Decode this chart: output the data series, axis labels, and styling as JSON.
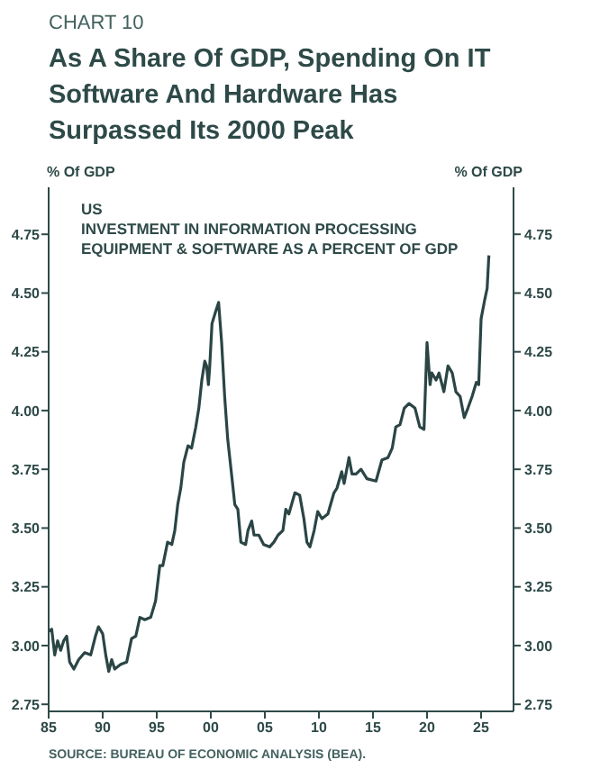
{
  "chart_data": {
    "type": "line",
    "title": "CHART 10",
    "subtitle": "As A Share Of GDP, Spending On IT Software And Hardware Has Surpassed Its 2000 Peak",
    "ylabel": "% Of GDP",
    "y2label": "% Of GDP",
    "annotations": [
      "US",
      "INVESTMENT IN INFORMATION PROCESSING EQUIPMENT & SOFTWARE AS A PERCENT OF GDP",
      "SOURCE: BUREAU OF ECONOMIC ANALYSIS (BEA)."
    ],
    "x": [
      1985.0,
      1985.28,
      1985.56,
      1985.83,
      1986.11,
      1986.39,
      1986.67,
      1986.94,
      1987.33,
      1987.78,
      1988.33,
      1988.89,
      1989.33,
      1989.61,
      1990.0,
      1990.28,
      1990.56,
      1990.83,
      1991.11,
      1991.67,
      1992.22,
      1992.67,
      1993.06,
      1993.44,
      1993.89,
      1994.44,
      1994.89,
      1995.28,
      1995.56,
      1996.0,
      1996.39,
      1996.67,
      1996.94,
      1997.22,
      1997.5,
      1997.89,
      1998.22,
      1998.61,
      1998.89,
      1999.17,
      1999.44,
      1999.61,
      1999.78,
      1999.89,
      2000.11,
      2000.44,
      2000.72,
      2001.0,
      2001.28,
      2001.56,
      2001.94,
      2002.22,
      2002.5,
      2002.78,
      2003.22,
      2003.44,
      2003.78,
      2004.0,
      2004.44,
      2004.89,
      2005.44,
      2005.83,
      2006.22,
      2006.67,
      2006.94,
      2007.22,
      2007.78,
      2008.22,
      2008.61,
      2008.89,
      2009.17,
      2009.56,
      2009.89,
      2010.28,
      2010.83,
      2011.39,
      2011.67,
      2012.11,
      2012.33,
      2012.78,
      2013.06,
      2013.44,
      2013.89,
      2014.44,
      2015.28,
      2015.83,
      2016.39,
      2016.78,
      2017.11,
      2017.5,
      2017.89,
      2018.33,
      2018.89,
      2019.33,
      2019.72,
      2020.0,
      2020.28,
      2020.44,
      2020.83,
      2021.11,
      2021.56,
      2021.94,
      2022.33,
      2022.67,
      2023.06,
      2023.44,
      2023.78,
      2024.17,
      2024.56,
      2024.78,
      2025.0,
      2025.33,
      2025.56,
      2025.72
    ],
    "series": [
      {
        "color": "#2b4545",
        "values": [
          3.06,
          3.07,
          2.96,
          3.02,
          2.98,
          3.02,
          3.04,
          2.93,
          2.9,
          2.94,
          2.97,
          2.96,
          3.04,
          3.08,
          3.05,
          2.96,
          2.89,
          2.94,
          2.9,
          2.92,
          2.93,
          3.03,
          3.04,
          3.12,
          3.11,
          3.12,
          3.19,
          3.34,
          3.34,
          3.44,
          3.43,
          3.49,
          3.6,
          3.67,
          3.78,
          3.85,
          3.84,
          3.93,
          4.01,
          4.13,
          4.21,
          4.19,
          4.11,
          4.18,
          4.37,
          4.42,
          4.46,
          4.29,
          4.06,
          3.88,
          3.72,
          3.6,
          3.58,
          3.44,
          3.43,
          3.49,
          3.53,
          3.47,
          3.47,
          3.43,
          3.42,
          3.44,
          3.47,
          3.49,
          3.58,
          3.56,
          3.65,
          3.64,
          3.54,
          3.44,
          3.42,
          3.49,
          3.57,
          3.54,
          3.56,
          3.65,
          3.67,
          3.74,
          3.69,
          3.8,
          3.73,
          3.73,
          3.75,
          3.71,
          3.7,
          3.79,
          3.8,
          3.84,
          3.93,
          3.94,
          4.01,
          4.03,
          4.01,
          3.93,
          3.92,
          4.29,
          4.11,
          4.16,
          4.13,
          4.16,
          4.08,
          4.19,
          4.16,
          4.08,
          4.06,
          3.97,
          4.01,
          4.06,
          4.12,
          4.11,
          4.39,
          4.47,
          4.52,
          4.66
        ]
      }
    ],
    "xlim": [
      1985,
      2028
    ],
    "xticks": [
      {
        "value": 1985,
        "label": "85"
      },
      {
        "value": 1990,
        "label": "90"
      },
      {
        "value": 1995,
        "label": "95"
      },
      {
        "value": 2000,
        "label": "00"
      },
      {
        "value": 2005,
        "label": "05"
      },
      {
        "value": 2010,
        "label": "10"
      },
      {
        "value": 2015,
        "label": "15"
      },
      {
        "value": 2020,
        "label": "20"
      },
      {
        "value": 2025,
        "label": "25"
      }
    ],
    "ylim": [
      2.72,
      4.95
    ],
    "yticks": [
      2.75,
      {
        "value": 3,
        "label": "3.00"
      },
      3.25,
      {
        "value": 3.5,
        "label": "3.50"
      },
      3.75,
      {
        "value": 4,
        "label": "4.00"
      },
      4.25,
      {
        "value": 4.5,
        "label": "4.50"
      },
      4.75
    ],
    "y2lim": [
      2.72,
      4.95
    ],
    "y2ticks": [
      2.75,
      {
        "value": 3,
        "label": "3.00"
      },
      3.25,
      {
        "value": 3.5,
        "label": "3.50"
      },
      3.75,
      {
        "value": 4,
        "label": "4.00"
      },
      4.25,
      {
        "value": 4.5,
        "label": "4.50"
      },
      4.75
    ]
  }
}
